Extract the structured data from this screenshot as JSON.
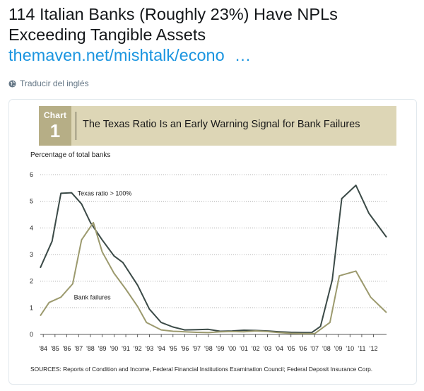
{
  "tweet": {
    "text_line1": "114 Italian Banks (Roughly 23%) Have NPLs",
    "text_line2": "Exceeding Tangible Assets",
    "link_text": "themaven.net/mishtalk/econo",
    "link_ellipsis": "…",
    "translate_label": "Traducir del inglés",
    "translate_icon": "globe-icon"
  },
  "chart_card": {
    "badge_word": "Chart",
    "badge_number": "1",
    "header_color": "#ddd6b6",
    "badge_color": "#b6ae86",
    "sources": "SOURCES: Reports of Condition and Income, Federal Financial Institutions Examination Council; Federal Deposit Insurance Corp."
  },
  "chart_data": {
    "type": "line",
    "title": "The Texas Ratio Is an Early Warning Signal for Bank Failures",
    "xlabel": "",
    "ylabel": "Percentage of total banks",
    "ylim": [
      0,
      6
    ],
    "yticks": [
      "0",
      "1",
      "2",
      "3",
      "4",
      "5",
      "6"
    ],
    "categories": [
      "'84",
      "'85",
      "'86",
      "'87",
      "'88",
      "'89",
      "'90",
      "'91",
      "'92",
      "'93",
      "'94",
      "'95",
      "'96",
      "'97",
      "'98",
      "'99",
      "'00",
      "'01",
      "'02",
      "'03",
      "'04",
      "'05",
      "'06",
      "'07",
      "'08",
      "'09",
      "'10",
      "'11",
      "'12"
    ],
    "x_start_year": 1983.75,
    "x_end_year": 2013.1,
    "grid": "horizontal-dotted",
    "series": [
      {
        "name": "Texas ratio > 100%",
        "color": "#3b4a47",
        "points": [
          [
            1983.75,
            2.5
          ],
          [
            1984.75,
            3.5
          ],
          [
            1985.5,
            5.3
          ],
          [
            1986.4,
            5.32
          ],
          [
            1987.25,
            4.9
          ],
          [
            1988.0,
            4.2
          ],
          [
            1989.0,
            3.55
          ],
          [
            1990.0,
            2.95
          ],
          [
            1990.75,
            2.7
          ],
          [
            1992.0,
            1.85
          ],
          [
            1993.0,
            0.95
          ],
          [
            1994.0,
            0.45
          ],
          [
            1995.0,
            0.28
          ],
          [
            1996.0,
            0.17
          ],
          [
            1997.0,
            0.18
          ],
          [
            1998.0,
            0.19
          ],
          [
            1999.0,
            0.12
          ],
          [
            2000.0,
            0.13
          ],
          [
            2001.0,
            0.16
          ],
          [
            2002.0,
            0.15
          ],
          [
            2003.0,
            0.13
          ],
          [
            2004.0,
            0.1
          ],
          [
            2005.0,
            0.08
          ],
          [
            2006.0,
            0.07
          ],
          [
            2006.75,
            0.07
          ],
          [
            2007.5,
            0.3
          ],
          [
            2008.5,
            2.05
          ],
          [
            2009.3,
            5.1
          ],
          [
            2010.5,
            5.6
          ],
          [
            2011.6,
            4.55
          ],
          [
            2013.1,
            3.65
          ]
        ]
      },
      {
        "name": "Bank failures",
        "color": "#9c9a6e",
        "points": [
          [
            1983.75,
            0.7
          ],
          [
            1984.5,
            1.2
          ],
          [
            1985.5,
            1.4
          ],
          [
            1986.5,
            1.9
          ],
          [
            1987.25,
            3.55
          ],
          [
            1988.25,
            4.2
          ],
          [
            1989.0,
            3.1
          ],
          [
            1990.0,
            2.3
          ],
          [
            1991.0,
            1.7
          ],
          [
            1992.0,
            1.05
          ],
          [
            1992.75,
            0.45
          ],
          [
            1994.0,
            0.17
          ],
          [
            1995.0,
            0.12
          ],
          [
            1996.0,
            0.1
          ],
          [
            1997.0,
            0.08
          ],
          [
            1998.0,
            0.07
          ],
          [
            1999.0,
            0.1
          ],
          [
            2000.0,
            0.11
          ],
          [
            2001.0,
            0.1
          ],
          [
            2002.0,
            0.13
          ],
          [
            2003.0,
            0.11
          ],
          [
            2004.0,
            0.07
          ],
          [
            2005.0,
            0.04
          ],
          [
            2006.0,
            0.03
          ],
          [
            2007.0,
            0.03
          ],
          [
            2008.3,
            0.45
          ],
          [
            2009.1,
            2.2
          ],
          [
            2010.5,
            2.38
          ],
          [
            2011.75,
            1.4
          ],
          [
            2013.1,
            0.82
          ]
        ]
      }
    ],
    "annotations": [
      {
        "text": "Texas ratio > 100%",
        "x": 1986.9,
        "y": 5.3
      },
      {
        "text": "Bank failures",
        "x": 1986.6,
        "y": 1.4
      }
    ]
  }
}
